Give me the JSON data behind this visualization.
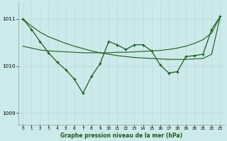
{
  "x": [
    0,
    1,
    2,
    3,
    4,
    5,
    6,
    7,
    8,
    9,
    10,
    11,
    12,
    13,
    14,
    15,
    16,
    17,
    18,
    19,
    20,
    21,
    22,
    23
  ],
  "line_diagonal_down": [
    1011.0,
    1010.85,
    1010.72,
    1010.62,
    1010.55,
    1010.48,
    1010.42,
    1010.37,
    1010.32,
    1010.28,
    1010.25,
    1010.22,
    1010.2,
    1010.18,
    1010.17,
    1010.16,
    1010.15,
    1010.14,
    1010.14,
    1010.14,
    1010.15,
    1010.16,
    1010.25,
    1011.05
  ],
  "line_diagonal_up": [
    1010.42,
    1010.38,
    1010.34,
    1010.32,
    1010.31,
    1010.3,
    1010.29,
    1010.28,
    1010.28,
    1010.28,
    1010.28,
    1010.29,
    1010.29,
    1010.3,
    1010.31,
    1010.32,
    1010.33,
    1010.35,
    1010.38,
    1010.42,
    1010.48,
    1010.56,
    1010.7,
    1011.05
  ],
  "line_main": [
    1011.0,
    1010.78,
    1010.52,
    1010.28,
    1010.08,
    1009.92,
    1009.72,
    1009.42,
    1009.78,
    1010.05,
    1010.52,
    1010.45,
    1010.35,
    1010.45,
    1010.45,
    1010.32,
    1010.02,
    1009.85,
    1009.88,
    1010.2,
    1010.22,
    1010.25,
    1010.78,
    1011.05
  ],
  "bg_color": "#cceaea",
  "grid_color": "#b8d8d8",
  "line_color": "#1a5c1a",
  "xlabel": "Graphe pression niveau de la mer (hPa)",
  "yticks": [
    1009,
    1010,
    1011
  ],
  "xticks": [
    0,
    1,
    2,
    3,
    4,
    5,
    6,
    7,
    8,
    9,
    10,
    11,
    12,
    13,
    14,
    15,
    16,
    17,
    18,
    19,
    20,
    21,
    22,
    23
  ],
  "ylim": [
    1008.75,
    1011.35
  ],
  "xlim": [
    -0.5,
    23.5
  ]
}
